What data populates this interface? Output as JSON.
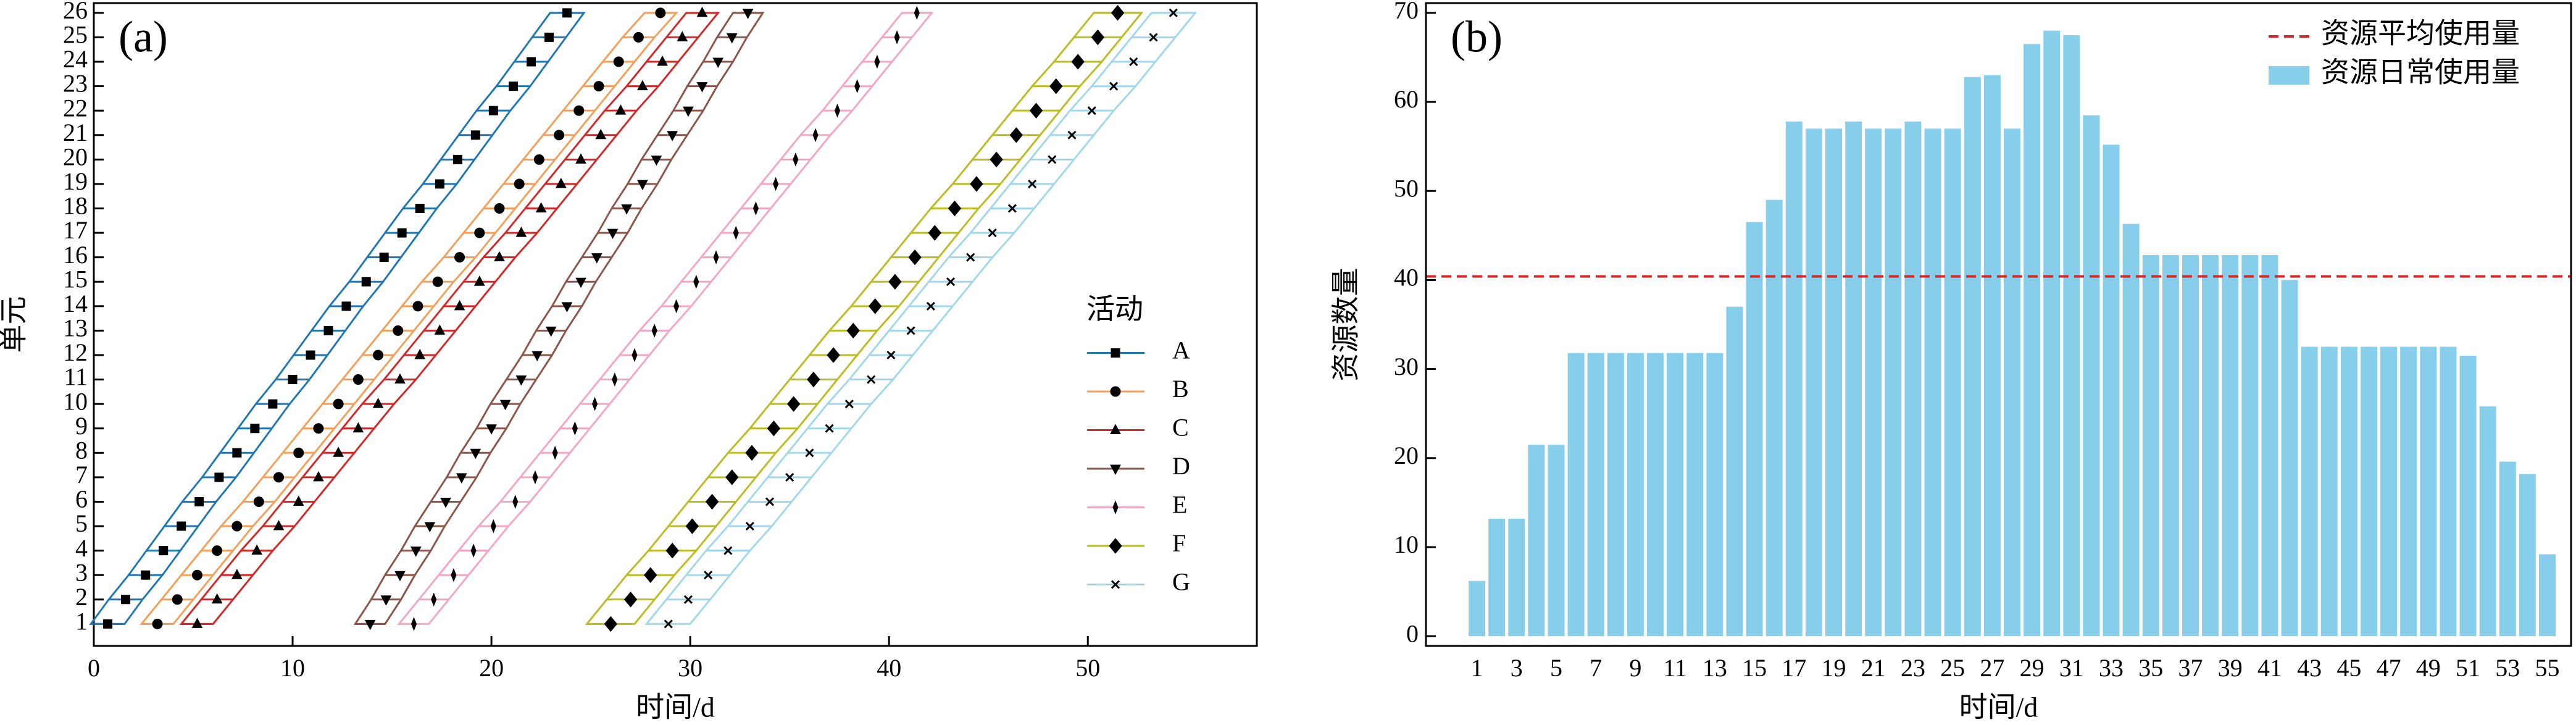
{
  "chart_data": [
    {
      "type": "line",
      "label": "(a)",
      "xlabel": "时间/d",
      "ylabel": "单元",
      "xlim": [
        0,
        58.5
      ],
      "xticks": [
        0,
        10,
        20,
        30,
        40,
        50
      ],
      "ylim": [
        0.1,
        26.4
      ],
      "yticks": [
        1,
        2,
        3,
        4,
        5,
        6,
        7,
        8,
        9,
        10,
        11,
        12,
        13,
        14,
        15,
        16,
        17,
        18,
        19,
        20,
        21,
        22,
        23,
        24,
        25,
        26
      ],
      "y": [
        1,
        2,
        3,
        4,
        5,
        6,
        7,
        8,
        9,
        10,
        11,
        12,
        13,
        14,
        15,
        16,
        17,
        18,
        19,
        20,
        21,
        22,
        23,
        24,
        25,
        26
      ],
      "legend_title": "活动",
      "legend_loc": "center right",
      "series": [
        {
          "name": "A",
          "color": "#1f77b4",
          "marker": "square",
          "duration": 1.7,
          "x": [
            0.7,
            1.6,
            2.6,
            3.5,
            4.4,
            5.3,
            6.3,
            7.2,
            8.1,
            9.0,
            10.0,
            10.9,
            11.8,
            12.7,
            13.7,
            14.6,
            15.5,
            16.4,
            17.4,
            18.3,
            19.2,
            20.1,
            21.1,
            22.0,
            22.9,
            23.8
          ]
        },
        {
          "name": "B",
          "color": "#f5a05a",
          "marker": "circle",
          "duration": 1.6,
          "x": [
            3.2,
            4.2,
            5.2,
            6.2,
            7.2,
            8.3,
            9.3,
            10.3,
            11.3,
            12.3,
            13.3,
            14.3,
            15.3,
            16.3,
            17.3,
            18.4,
            19.4,
            20.4,
            21.4,
            22.4,
            23.4,
            24.4,
            25.4,
            26.4,
            27.4,
            28.5
          ]
        },
        {
          "name": "C",
          "color": "#d62728",
          "marker": "triangle-up",
          "duration": 1.6,
          "x": [
            5.2,
            6.2,
            7.2,
            8.2,
            9.3,
            10.3,
            11.3,
            12.3,
            13.3,
            14.3,
            15.4,
            16.4,
            17.4,
            18.4,
            19.4,
            20.4,
            21.5,
            22.5,
            23.5,
            24.5,
            25.5,
            26.5,
            27.6,
            28.6,
            29.6,
            30.6
          ]
        },
        {
          "name": "D",
          "color": "#8c564b",
          "marker": "triangle-down",
          "duration": 1.5,
          "x": [
            13.9,
            14.7,
            15.4,
            16.2,
            16.9,
            17.7,
            18.5,
            19.2,
            20.0,
            20.7,
            21.5,
            22.3,
            23.0,
            23.8,
            24.5,
            25.3,
            26.1,
            26.8,
            27.6,
            28.3,
            29.1,
            29.9,
            30.6,
            31.4,
            32.1,
            32.9
          ]
        },
        {
          "name": "E",
          "color": "#f4a7c4",
          "marker": "thin-diamond",
          "duration": 1.5,
          "x": [
            16.1,
            17.1,
            18.1,
            19.1,
            20.1,
            21.2,
            22.2,
            23.2,
            24.2,
            25.2,
            26.2,
            27.2,
            28.2,
            29.3,
            30.3,
            31.3,
            32.3,
            33.3,
            34.3,
            35.3,
            36.3,
            37.4,
            38.4,
            39.4,
            40.4,
            41.4
          ]
        },
        {
          "name": "F",
          "color": "#bcbd22",
          "marker": "diamond",
          "duration": 2.4,
          "x": [
            26.0,
            27.0,
            28.0,
            29.1,
            30.1,
            31.1,
            32.1,
            33.1,
            34.2,
            35.2,
            36.2,
            37.2,
            38.2,
            39.3,
            40.3,
            41.3,
            42.3,
            43.3,
            44.4,
            45.4,
            46.4,
            47.4,
            48.4,
            49.5,
            50.5,
            51.5
          ]
        },
        {
          "name": "G",
          "color": "#a3d8ea",
          "marker": "x",
          "duration": 2.2,
          "x": [
            28.9,
            29.9,
            30.9,
            31.9,
            33.0,
            34.0,
            35.0,
            36.0,
            37.0,
            38.0,
            39.1,
            40.1,
            41.1,
            42.1,
            43.1,
            44.1,
            45.2,
            46.2,
            47.2,
            48.2,
            49.2,
            50.2,
            51.3,
            52.3,
            53.3,
            54.3
          ]
        }
      ]
    },
    {
      "type": "bar",
      "label": "(b)",
      "xlabel": "时间/d",
      "ylabel": "资源数量",
      "categories": [
        "1",
        null,
        "3",
        null,
        "5",
        null,
        "7",
        null,
        "9",
        null,
        "11",
        null,
        "13",
        null,
        "15",
        null,
        "17",
        null,
        "19",
        null,
        "21",
        null,
        "23",
        null,
        "25",
        null,
        "27",
        null,
        "29",
        null,
        "31",
        null,
        "33",
        null,
        "35",
        null,
        "37",
        null,
        "39",
        null,
        "41",
        null,
        "43",
        null,
        "45",
        null,
        "47",
        null,
        "49",
        null,
        "51",
        null,
        "53",
        null,
        "55"
      ],
      "ylim": [
        -1.1,
        71.1
      ],
      "yticks": [
        0,
        10,
        20,
        30,
        40,
        50,
        60,
        70
      ],
      "legend_loc": "upper right",
      "hline": {
        "name": "资源平均使用量",
        "color": "#d62728",
        "value": 40.4
      },
      "series": [
        {
          "name": "资源日常使用量",
          "color": "#87ceeb",
          "values": [
            6.2,
            13.2,
            13.2,
            21.5,
            21.5,
            31.8,
            31.8,
            31.8,
            31.8,
            31.8,
            31.8,
            31.8,
            31.8,
            37,
            46.5,
            49,
            57.8,
            57,
            57,
            57.8,
            57,
            57,
            57.8,
            57,
            57,
            62.8,
            63,
            57,
            66.5,
            68,
            67.5,
            58.5,
            55.2,
            46.3,
            42.8,
            42.8,
            42.8,
            42.8,
            42.8,
            42.8,
            42.8,
            40,
            32.5,
            32.5,
            32.5,
            32.5,
            32.5,
            32.5,
            32.5,
            32.5,
            31.5,
            25.8,
            19.6,
            18.2,
            9.2
          ]
        }
      ]
    }
  ]
}
